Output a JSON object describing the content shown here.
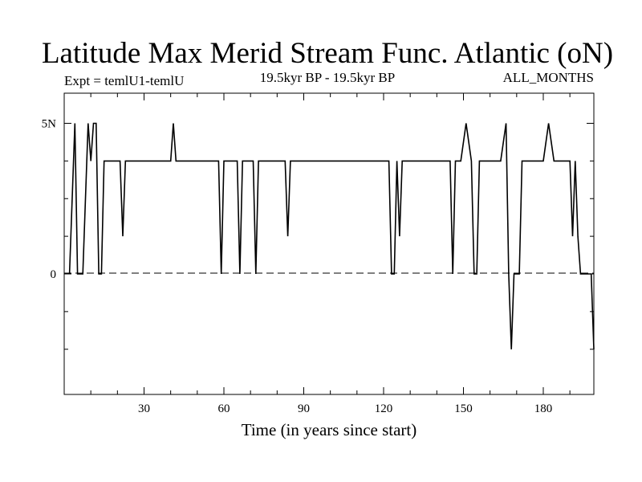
{
  "chart_data": {
    "type": "line",
    "title": "Latitude Max Merid Stream Func. Atlantic (oN)",
    "subtitle_left": "Expt = temlU1-temlU",
    "subtitle_center": "19.5kyr BP - 19.5kyr BP",
    "subtitle_right": "ALL_MONTHS",
    "xlabel": "Time (in years since start)",
    "ylabel": "",
    "xlim": [
      0,
      199
    ],
    "ylim": [
      -4,
      6
    ],
    "x_ticks": [
      30,
      60,
      90,
      120,
      150,
      180
    ],
    "x_tick_labels": [
      "30",
      "60",
      "90",
      "120",
      "150",
      "180"
    ],
    "y_ticks": [
      0,
      5
    ],
    "y_tick_labels": [
      "0",
      "5N"
    ],
    "reference_line": {
      "y": 0,
      "style": "dashed"
    },
    "grid": false,
    "series": [
      {
        "values_xy": [
          [
            2,
            0
          ],
          [
            4,
            5
          ],
          [
            5,
            0
          ],
          [
            7,
            0
          ],
          [
            9,
            5
          ],
          [
            10,
            3.75
          ],
          [
            11,
            5
          ],
          [
            12,
            5
          ],
          [
            13,
            0
          ],
          [
            14,
            0
          ],
          [
            15,
            3.75
          ],
          [
            21,
            3.75
          ],
          [
            22,
            1.25
          ],
          [
            23,
            3.75
          ],
          [
            40,
            3.75
          ],
          [
            41,
            5
          ],
          [
            42,
            3.75
          ],
          [
            58,
            3.75
          ],
          [
            59,
            0
          ],
          [
            60,
            3.75
          ],
          [
            65,
            3.75
          ],
          [
            66,
            0
          ],
          [
            67,
            3.75
          ],
          [
            71,
            3.75
          ],
          [
            72,
            0
          ],
          [
            73,
            3.75
          ],
          [
            83,
            3.75
          ],
          [
            84,
            1.25
          ],
          [
            85,
            3.75
          ],
          [
            122,
            3.75
          ],
          [
            123,
            0
          ],
          [
            124,
            0
          ],
          [
            125,
            3.75
          ],
          [
            126,
            1.25
          ],
          [
            127,
            3.75
          ],
          [
            145,
            3.75
          ],
          [
            146,
            0
          ],
          [
            147,
            3.75
          ],
          [
            149,
            3.75
          ],
          [
            151,
            5
          ],
          [
            153,
            3.75
          ],
          [
            154,
            0
          ],
          [
            155,
            0
          ],
          [
            156,
            3.75
          ],
          [
            164,
            3.75
          ],
          [
            166,
            5
          ],
          [
            167,
            0
          ],
          [
            168,
            -2.5
          ],
          [
            169,
            0
          ],
          [
            171,
            0
          ],
          [
            172,
            3.75
          ],
          [
            180,
            3.75
          ],
          [
            182,
            5
          ],
          [
            184,
            3.75
          ],
          [
            190,
            3.75
          ],
          [
            191,
            1.25
          ],
          [
            192,
            3.75
          ],
          [
            193,
            1.25
          ],
          [
            194,
            0
          ],
          [
            198,
            0
          ],
          [
            199,
            -2.5
          ]
        ]
      }
    ]
  }
}
